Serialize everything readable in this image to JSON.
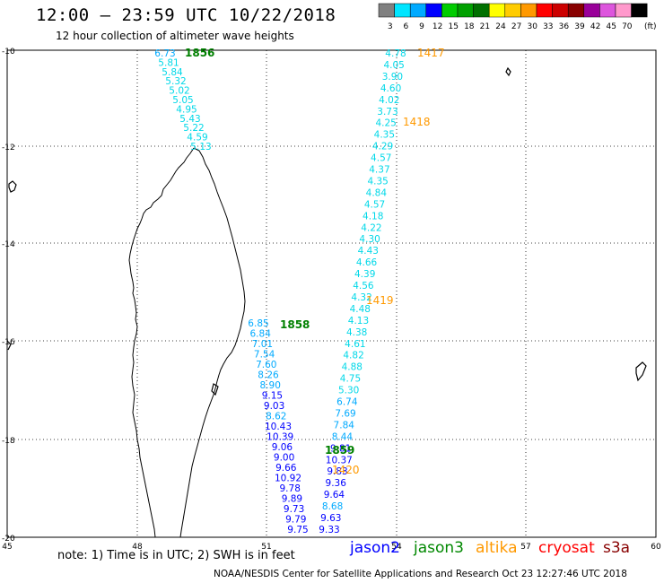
{
  "header": {
    "title": "12:00 – 23:59 UTC 10/22/2018",
    "subtitle": "12 hour collection of altimeter wave heights"
  },
  "legend": {
    "unit": "(ft)",
    "bins": [
      {
        "label": "3",
        "color": "#808080"
      },
      {
        "label": "6",
        "color": "#00e5ff"
      },
      {
        "label": "9",
        "color": "#00aaff"
      },
      {
        "label": "12",
        "color": "#0000ff"
      },
      {
        "label": "15",
        "color": "#00cc00"
      },
      {
        "label": "18",
        "color": "#00a000"
      },
      {
        "label": "21",
        "color": "#007000"
      },
      {
        "label": "24",
        "color": "#ffff00"
      },
      {
        "label": "27",
        "color": "#ffcc00"
      },
      {
        "label": "30",
        "color": "#ff9900"
      },
      {
        "label": "33",
        "color": "#ff0000"
      },
      {
        "label": "36",
        "color": "#cc0000"
      },
      {
        "label": "39",
        "color": "#880000"
      },
      {
        "label": "42",
        "color": "#990099"
      },
      {
        "label": "45",
        "color": "#dd55dd"
      },
      {
        "label": "70",
        "color": "#ff99cc"
      },
      {
        "label": "",
        "color": "#000000"
      }
    ]
  },
  "axes": {
    "lon_labels": [
      "45",
      "48",
      "51",
      "54",
      "57",
      "60"
    ],
    "lat_labels": [
      "-10",
      "-12",
      "-14",
      "-16",
      "-18",
      "-20"
    ]
  },
  "tracks": {
    "jason3_label_1": "1856",
    "jason3_label_2": "1858",
    "jason3_label_3": "1859",
    "altika_label_1": "1417",
    "altika_label_2": "1418",
    "altika_label_3": "1419",
    "altika_label_4": "1420",
    "track_1856": [
      "6.73",
      "5.81",
      "5.84",
      "5.32",
      "5.02",
      "5.05",
      "4.95",
      "5.43",
      "5.22",
      "4.59",
      "5.13"
    ],
    "track_1417": [
      "4.78",
      "4.05",
      "3.90",
      "4.60",
      "4.02",
      "3.73",
      "4.25",
      "4.35",
      "4.29",
      "4.57",
      "4.37",
      "4.35",
      "4.84",
      "4.57",
      "4.18",
      "4.22",
      "4.30",
      "4.43",
      "4.66",
      "4.39",
      "4.56",
      "4.32",
      "4.48",
      "4.13",
      "4.38",
      "4.61",
      "4.82",
      "4.88",
      "4.75",
      "5.30",
      "6.74",
      "7.69",
      "7.84",
      "8.44",
      "9.81",
      "10.37",
      "9.83",
      "9.36",
      "9.64",
      "8.68",
      "9.63",
      "9.33"
    ],
    "track_1858": [
      "6.85",
      "6.84",
      "7.01",
      "7.54",
      "7.60",
      "8.26",
      "8.90",
      "9.15",
      "9.03",
      "8.62",
      "10.43",
      "10.39",
      "9.06",
      "9.00",
      "9.66",
      "10.92",
      "9.78",
      "9.89",
      "9.73",
      "9.79",
      "9.75"
    ]
  },
  "footer": {
    "note": "note:  1) Time is in UTC;  2) SWH is in feet",
    "satellites": [
      {
        "name": "jason2",
        "color": "#0000ff"
      },
      {
        "name": "jason3",
        "color": "#008800"
      },
      {
        "name": "altika",
        "color": "#ff9900"
      },
      {
        "name": "cryosat",
        "color": "#ff0000"
      },
      {
        "name": "s3a",
        "color": "#880000"
      }
    ],
    "credit": "NOAA/NESDIS Center for Satellite Applications and Research      Oct 23 12:27:46 UTC 2018"
  }
}
